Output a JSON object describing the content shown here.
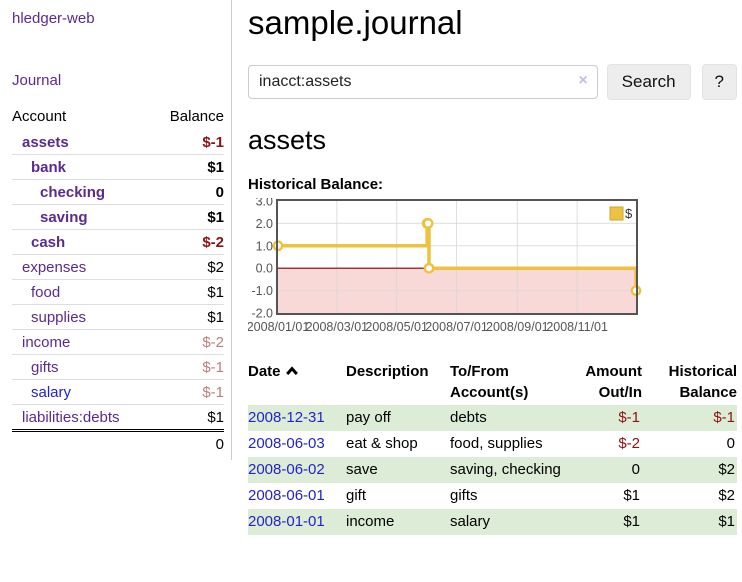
{
  "app": {
    "brand": "hledger-web",
    "nav_journal": "Journal"
  },
  "sidebar": {
    "col_account": "Account",
    "col_balance": "Balance",
    "accounts": [
      {
        "name": "assets",
        "indent": 1,
        "bold": true,
        "balance": "$-1",
        "neg": true
      },
      {
        "name": "bank",
        "indent": 2,
        "bold": true,
        "balance": "$1",
        "neg": false
      },
      {
        "name": "checking",
        "indent": 3,
        "bold": true,
        "balance": "0",
        "neg": false
      },
      {
        "name": "saving",
        "indent": 3,
        "bold": true,
        "balance": "$1",
        "neg": false
      },
      {
        "name": "cash",
        "indent": 2,
        "bold": true,
        "balance": "$-2",
        "neg": true
      },
      {
        "name": "expenses",
        "indent": 1,
        "bold": false,
        "balance": "$2",
        "neg": false
      },
      {
        "name": "food",
        "indent": 2,
        "bold": false,
        "balance": "$1",
        "neg": false
      },
      {
        "name": "supplies",
        "indent": 2,
        "bold": false,
        "balance": "$1",
        "neg": false
      },
      {
        "name": "income",
        "indent": 1,
        "bold": false,
        "balance": "$-2",
        "neg": true,
        "dim": true
      },
      {
        "name": "gifts",
        "indent": 2,
        "bold": false,
        "balance": "$-1",
        "neg": true,
        "dim": true
      },
      {
        "name": "salary",
        "indent": 2,
        "bold": false,
        "balance": "$-1",
        "neg": true,
        "dim": true,
        "unvisited": true
      },
      {
        "name": "liabilities:debts",
        "indent": 1,
        "bold": false,
        "balance": "$1",
        "neg": false
      }
    ],
    "total": "0"
  },
  "header": {
    "title": "sample.journal"
  },
  "search": {
    "query": "inacct:assets",
    "clear_icon": "×",
    "button": "Search",
    "help_button": "?"
  },
  "account_page": {
    "title": "assets",
    "chart_title": "Historical Balance:"
  },
  "chart_data": {
    "type": "line",
    "step": true,
    "title": "Historical Balance of assets",
    "series": [
      {
        "name": "$",
        "color": "#edc240",
        "points": [
          [
            "2008-01-01",
            1
          ],
          [
            "2008-06-01",
            2
          ],
          [
            "2008-06-02",
            2
          ],
          [
            "2008-06-03",
            0
          ],
          [
            "2008-12-31",
            -1
          ]
        ]
      }
    ],
    "xrange": [
      "2008-01-01",
      "2008-12-31"
    ],
    "ylim": [
      -2,
      3
    ],
    "yticks": [
      3.0,
      2.0,
      1.0,
      0.0,
      -1.0,
      -2.0
    ],
    "xticks": [
      "2008/01/01",
      "2008/03/01",
      "2008/05/01",
      "2008/07/01",
      "2008/09/01",
      "2008/11/01"
    ],
    "grid": true,
    "legend_position": "top-right",
    "negative_region_color": "#f9d8d8",
    "zero_line_color": "#800000"
  },
  "register": {
    "columns": {
      "date": "Date",
      "description": "Description",
      "accounts": "To/From Account(s)",
      "amount": "Amount Out/In",
      "balance": "Historical Balance"
    },
    "rows": [
      {
        "date": "2008-12-31",
        "description": "pay off",
        "accounts": "debts",
        "amount": "$-1",
        "amount_neg": true,
        "balance": "$-1",
        "balance_neg": true
      },
      {
        "date": "2008-06-03",
        "description": "eat & shop",
        "accounts": "food, supplies",
        "amount": "$-2",
        "amount_neg": true,
        "balance": "0",
        "balance_neg": false
      },
      {
        "date": "2008-06-02",
        "description": "save",
        "accounts": "saving, checking",
        "amount": "0",
        "amount_neg": false,
        "balance": "$2",
        "balance_neg": false
      },
      {
        "date": "2008-06-01",
        "description": "gift",
        "accounts": "gifts",
        "amount": "$1",
        "amount_neg": false,
        "balance": "$2",
        "balance_neg": false
      },
      {
        "date": "2008-01-01",
        "description": "income",
        "accounts": "salary",
        "amount": "$1",
        "amount_neg": false,
        "balance": "$1",
        "balance_neg": false
      }
    ]
  }
}
